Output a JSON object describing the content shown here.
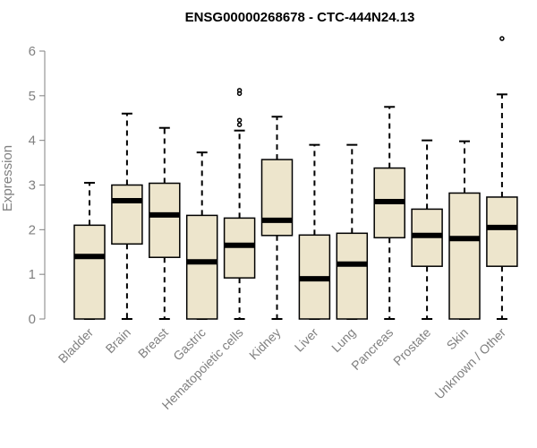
{
  "chart_data": {
    "type": "box",
    "title": "ENSG00000268678 - CTC-444N24.13",
    "xlabel": "",
    "ylabel": "Expression",
    "ylim": [
      0,
      6
    ],
    "yticks": [
      "0",
      "1",
      "2",
      "3",
      "4",
      "5",
      "6"
    ],
    "categories": [
      "Bladder",
      "Brain",
      "Breast",
      "Gastric",
      "Hematopoietic cells",
      "Kidney",
      "Liver",
      "Lung",
      "Pancreas",
      "Prostate",
      "Skin",
      "Unknown / Other"
    ],
    "boxes": [
      {
        "min": 0,
        "q1": 0,
        "median": 1.4,
        "q3": 2.1,
        "max": 3.05,
        "outliers": []
      },
      {
        "min": 0,
        "q1": 1.68,
        "median": 2.65,
        "q3": 3.0,
        "max": 4.6,
        "outliers": []
      },
      {
        "min": 0,
        "q1": 1.38,
        "median": 2.33,
        "q3": 3.04,
        "max": 4.28,
        "outliers": []
      },
      {
        "min": 0,
        "q1": 0,
        "median": 1.28,
        "q3": 2.32,
        "max": 3.73,
        "outliers": []
      },
      {
        "min": 0,
        "q1": 0.92,
        "median": 1.65,
        "q3": 2.26,
        "max": 4.22,
        "outliers": [
          4.35,
          4.45,
          5.05,
          5.12
        ]
      },
      {
        "min": 0,
        "q1": 1.87,
        "median": 2.21,
        "q3": 3.57,
        "max": 4.53,
        "outliers": []
      },
      {
        "min": 0,
        "q1": 0,
        "median": 0.9,
        "q3": 1.88,
        "max": 3.9,
        "outliers": []
      },
      {
        "min": 0,
        "q1": 0,
        "median": 1.23,
        "q3": 1.92,
        "max": 3.9,
        "outliers": []
      },
      {
        "min": 0,
        "q1": 1.82,
        "median": 2.63,
        "q3": 3.38,
        "max": 4.75,
        "outliers": []
      },
      {
        "min": 0,
        "q1": 1.18,
        "median": 1.87,
        "q3": 2.46,
        "max": 4.0,
        "outliers": []
      },
      {
        "min": 0,
        "q1": 0,
        "median": 1.8,
        "q3": 2.82,
        "max": 3.98,
        "outliers": []
      },
      {
        "min": 0,
        "q1": 1.18,
        "median": 2.05,
        "q3": 2.73,
        "max": 5.03,
        "outliers": [
          6.28
        ]
      }
    ],
    "box_fill": "#ede5cc",
    "box_stroke": "#000000",
    "axis_color": "#808080",
    "grid": false,
    "legend": "none"
  }
}
